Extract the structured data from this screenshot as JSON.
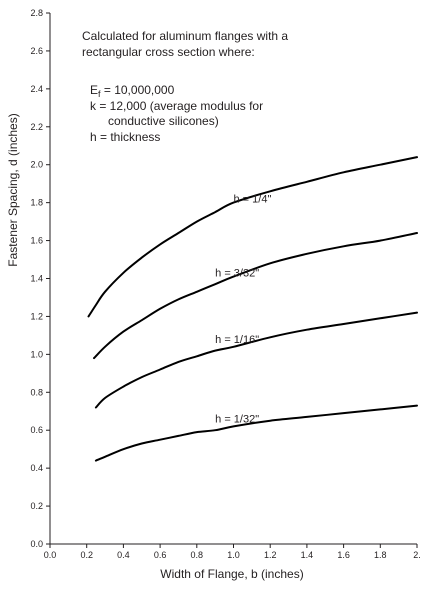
{
  "chart_data": {
    "type": "line",
    "xlabel": "Width of Flange, b (inches)",
    "ylabel": "Fastener Spacing, d (inches)",
    "xlim": [
      0.0,
      2.0
    ],
    "ylim": [
      0.0,
      2.8
    ],
    "x_ticks": [
      "0.0",
      "0.2",
      "0.4",
      "0.6",
      "0.8",
      "1.0",
      "1.2",
      "1.4",
      "1.6",
      "1.8",
      "2."
    ],
    "y_ticks": [
      "0.0",
      "0.2",
      "0.4",
      "0.6",
      "0.8",
      "1.0",
      "1.2",
      "1.4",
      "1.6",
      "1.8",
      "2.0",
      "2.2",
      "2.4",
      "2.6",
      "2.8"
    ],
    "grid": false,
    "annotation": {
      "line1": "Calculated for aluminum flanges with a",
      "line2": "rectangular cross section where:",
      "ef_symbol": "E",
      "ef_subscript": "f",
      "ef_value": " = 10,000,000",
      "k_line": "k = 12,000 (average modulus for",
      "k_line2": "conductive silicones)",
      "h_line": "h = thickness"
    },
    "series": [
      {
        "name": "h = 1/4\"",
        "x": [
          0.21,
          0.25,
          0.3,
          0.4,
          0.5,
          0.6,
          0.7,
          0.8,
          0.9,
          1.0,
          1.2,
          1.4,
          1.6,
          1.8,
          2.0
        ],
        "y": [
          1.2,
          1.26,
          1.33,
          1.43,
          1.51,
          1.58,
          1.64,
          1.7,
          1.75,
          1.8,
          1.86,
          1.91,
          1.96,
          2.0,
          2.04
        ]
      },
      {
        "name": "h = 3/32\"",
        "x": [
          0.24,
          0.3,
          0.4,
          0.5,
          0.6,
          0.7,
          0.8,
          0.9,
          1.0,
          1.2,
          1.4,
          1.6,
          1.8,
          2.0
        ],
        "y": [
          0.98,
          1.04,
          1.12,
          1.18,
          1.24,
          1.29,
          1.33,
          1.37,
          1.41,
          1.48,
          1.53,
          1.57,
          1.6,
          1.64
        ]
      },
      {
        "name": "h = 1/16\"",
        "x": [
          0.25,
          0.3,
          0.4,
          0.5,
          0.6,
          0.7,
          0.8,
          0.9,
          1.0,
          1.2,
          1.4,
          1.6,
          1.8,
          2.0
        ],
        "y": [
          0.72,
          0.77,
          0.83,
          0.88,
          0.92,
          0.96,
          0.99,
          1.02,
          1.04,
          1.09,
          1.13,
          1.16,
          1.19,
          1.22
        ]
      },
      {
        "name": "h = 1/32\"",
        "x": [
          0.25,
          0.3,
          0.4,
          0.5,
          0.6,
          0.7,
          0.8,
          0.9,
          1.0,
          1.2,
          1.4,
          1.6,
          1.8,
          2.0
        ],
        "y": [
          0.44,
          0.46,
          0.5,
          0.53,
          0.55,
          0.57,
          0.59,
          0.6,
          0.62,
          0.65,
          0.67,
          0.69,
          0.71,
          0.73
        ]
      }
    ],
    "series_label_anchor": [
      {
        "x": 1.0,
        "y": 1.8
      },
      {
        "x": 0.9,
        "y": 1.41
      },
      {
        "x": 0.9,
        "y": 1.06
      },
      {
        "x": 0.9,
        "y": 0.64
      }
    ]
  }
}
